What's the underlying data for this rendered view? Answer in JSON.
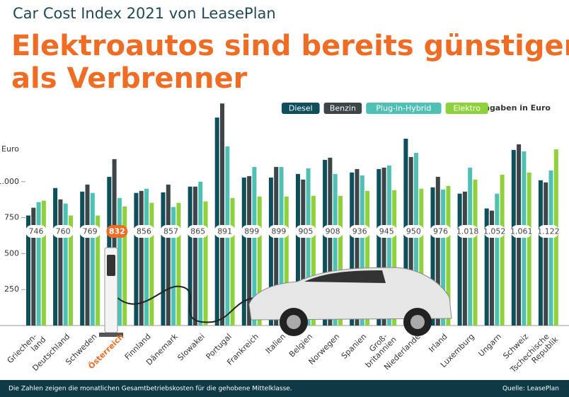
{
  "chart_data": {
    "type": "bar",
    "supertitle": "Car Cost Index 2021 von LeasePlan",
    "title_lines": [
      "Elektroautos sind bereits günstiger",
      "als Verbrenner"
    ],
    "unit_note": "Angaben in Euro",
    "y_axis_label": "Euro",
    "note": "Die Zahlen zeigen die monatlichen Gesamtbetriebskosten für die gehobene Mittelklasse.",
    "source": "Quelle: LeasePlan",
    "highlight_category": "Österreich",
    "highlight_color": "#ef6c25",
    "categories": [
      "Griechen-\nland",
      "Deutschland",
      "Schweden",
      "Österreich",
      "Finnland",
      "Dänemark",
      "Slowakei",
      "Portugal",
      "Frankreich",
      "Italien",
      "Belgien",
      "Norwegen",
      "Spanien",
      "Groß-\nbritannien",
      "Niederlande",
      "Irland",
      "Luxemburg",
      "Ungarn",
      "Schweiz",
      "Tschechische\nRepublik"
    ],
    "series": [
      {
        "name": "Diesel",
        "color": "#0e4f5c",
        "values": [
          765,
          956,
          931,
          1034,
          922,
          926,
          966,
          1446,
          1029,
          1029,
          1054,
          1152,
          1064,
          1088,
          1299,
          961,
          917,
          814,
          1221,
          1010
        ]
      },
      {
        "name": "Benzin",
        "color": "#3d4549",
        "values": [
          819,
          877,
          980,
          1157,
          936,
          980,
          966,
          1544,
          1039,
          1103,
          1015,
          1167,
          1088,
          1098,
          1172,
          1034,
          931,
          799,
          1260,
          995
        ]
      },
      {
        "name": "Plug-in-Hybrid",
        "color": "#4fc1b4",
        "values": [
          858,
          848,
          922,
          887,
          951,
          824,
          1000,
          1245,
          1103,
          1103,
          1093,
          1054,
          1044,
          1113,
          1201,
          946,
          1098,
          917,
          1211,
          1078
        ]
      },
      {
        "name": "Elektro",
        "color": "#8fd13a",
        "values": [
          868,
          765,
          765,
          828,
          853,
          853,
          863,
          887,
          897,
          897,
          902,
          902,
          936,
          941,
          951,
          971,
          1015,
          1049,
          1064,
          1225
        ]
      }
    ],
    "index_values": [
      746,
      760,
      769,
      832,
      856,
      857,
      865,
      891,
      899,
      899,
      905,
      908,
      936,
      945,
      950,
      976,
      {
        "value": 1018,
        "label": "1.018"
      },
      {
        "value": 1052,
        "label": "1.052"
      },
      {
        "value": 1061,
        "label": "1.061"
      },
      {
        "value": 1122,
        "label": "1.122"
      }
    ],
    "ylim": [
      0,
      1550
    ],
    "yticks": [
      250,
      500,
      750,
      {
        "value": 1000,
        "label": "1.000"
      }
    ],
    "grid": false
  }
}
